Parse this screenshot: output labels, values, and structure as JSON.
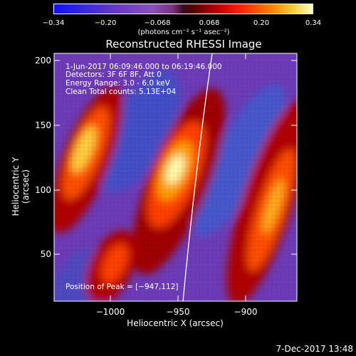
{
  "colorbar": {
    "ticks": [
      "−0.34",
      "−0.20",
      "−0.068",
      "0.068",
      "0.20",
      "0.34"
    ],
    "units": "(photons cm⁻² s⁻¹ asec⁻²)"
  },
  "title": "Reconstructed RHESSI Image",
  "info": {
    "time": "1-Jun-2017 06:09:46.000 to 06:19:46.000",
    "detectors": "Detectors: 3F 6F 8F, Att 0",
    "energy": "Energy Range: 3.0 - 6.0 keV",
    "method": "Clean     Total counts: 5.13E+04",
    "peak": "Position of Peak = [−947,112]"
  },
  "axes": {
    "xlabel": "Heliocentric X (arcsec)",
    "ylabel": "Heliocentric Y (arcsec)",
    "xticks": [
      "−1000",
      "−950",
      "−900"
    ],
    "yticks": [
      "200",
      "150",
      "100",
      "50"
    ]
  },
  "datestamp": "7-Dec-2017 13:48",
  "colors": {
    "background": "#000000",
    "foreground": "#ffffff",
    "purple": "#6a3ab8",
    "red": "#c00000",
    "yellow": "#ffe040"
  }
}
